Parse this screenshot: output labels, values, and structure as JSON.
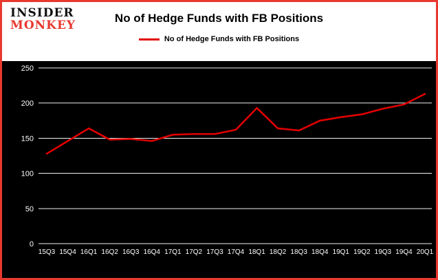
{
  "header": {
    "logo_line1": "INSIDER",
    "logo_line2": "MONKEY",
    "title": "No of Hedge Funds with FB Positions",
    "legend_label": "No of Hedge Funds with FB Positions"
  },
  "colors": {
    "border": "#e8392f",
    "line": "#e20000",
    "plot_background": "#000000",
    "grid": "#ffffff",
    "tick_text": "#ffffff"
  },
  "chart_data": {
    "type": "line",
    "title": "No of Hedge Funds with FB Positions",
    "categories": [
      "15Q3",
      "15Q4",
      "16Q1",
      "16Q2",
      "16Q3",
      "16Q4",
      "17Q1",
      "17Q2",
      "17Q3",
      "17Q4",
      "18Q1",
      "18Q2",
      "18Q3",
      "18Q4",
      "19Q1",
      "19Q2",
      "19Q3",
      "19Q4",
      "20Q1"
    ],
    "series": [
      {
        "name": "No of Hedge Funds with FB Positions",
        "values": [
          128,
          146,
          164,
          148,
          149,
          146,
          155,
          156,
          156,
          162,
          193,
          164,
          161,
          175,
          180,
          184,
          192,
          198,
          213
        ]
      }
    ],
    "xlabel": "",
    "ylabel": "",
    "ylim": [
      0,
      250
    ],
    "yticks": [
      0,
      50,
      100,
      150,
      200,
      250
    ],
    "grid": true,
    "legend_position": "top"
  }
}
